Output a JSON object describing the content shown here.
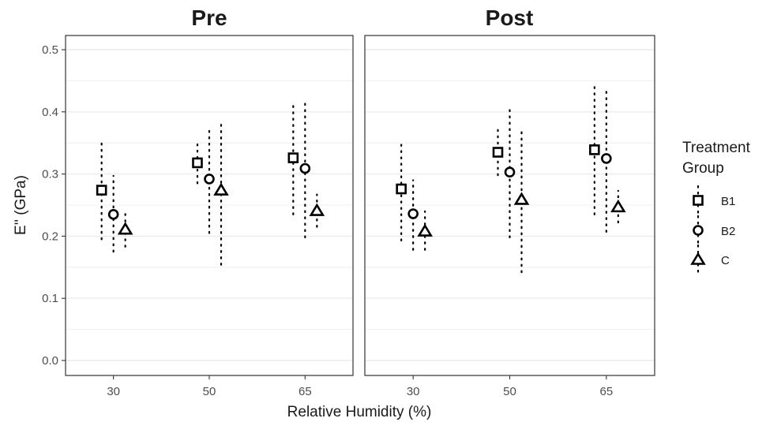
{
  "chart_data": {
    "type": "scatter",
    "panels": [
      "Pre",
      "Post"
    ],
    "xlabel": "Relative Humidity (%)",
    "ylabel": "E'' (GPa)",
    "categories": [
      "30",
      "50",
      "65"
    ],
    "ylim": [
      0,
      0.5
    ],
    "yticks": [
      "0.0",
      "0.1",
      "0.2",
      "0.3",
      "0.4",
      "0.5"
    ],
    "grid": true,
    "legend": {
      "title_lines": [
        "Treatment",
        "Group"
      ],
      "position": "right",
      "entries": [
        {
          "name": "B1",
          "shape": "square"
        },
        {
          "name": "B2",
          "shape": "circle"
        },
        {
          "name": "C",
          "shape": "triangle"
        }
      ]
    },
    "series": [
      {
        "name": "B1",
        "shape": "square",
        "panel": "Pre",
        "values": [
          0.274,
          0.318,
          0.326
        ],
        "lower": [
          0.195,
          0.285,
          0.235
        ],
        "upper": [
          0.352,
          0.35,
          0.415
        ]
      },
      {
        "name": "B2",
        "shape": "circle",
        "panel": "Pre",
        "values": [
          0.235,
          0.292,
          0.309
        ],
        "lower": [
          0.175,
          0.205,
          0.198
        ],
        "upper": [
          0.297,
          0.375,
          0.418
        ]
      },
      {
        "name": "C",
        "shape": "triangle",
        "panel": "Pre",
        "values": [
          0.211,
          0.274,
          0.241
        ],
        "lower": [
          0.183,
          0.154,
          0.215
        ],
        "upper": [
          0.238,
          0.385,
          0.267
        ]
      },
      {
        "name": "B1",
        "shape": "square",
        "panel": "Post",
        "values": [
          0.276,
          0.335,
          0.339
        ],
        "lower": [
          0.193,
          0.298,
          0.235
        ],
        "upper": [
          0.352,
          0.372,
          0.443
        ]
      },
      {
        "name": "B2",
        "shape": "circle",
        "panel": "Post",
        "values": [
          0.236,
          0.303,
          0.325
        ],
        "lower": [
          0.178,
          0.198,
          0.207
        ],
        "upper": [
          0.29,
          0.408,
          0.438
        ]
      },
      {
        "name": "C",
        "shape": "triangle",
        "panel": "Post",
        "values": [
          0.208,
          0.259,
          0.247
        ],
        "lower": [
          0.178,
          0.142,
          0.222
        ],
        "upper": [
          0.24,
          0.375,
          0.273
        ]
      }
    ]
  }
}
